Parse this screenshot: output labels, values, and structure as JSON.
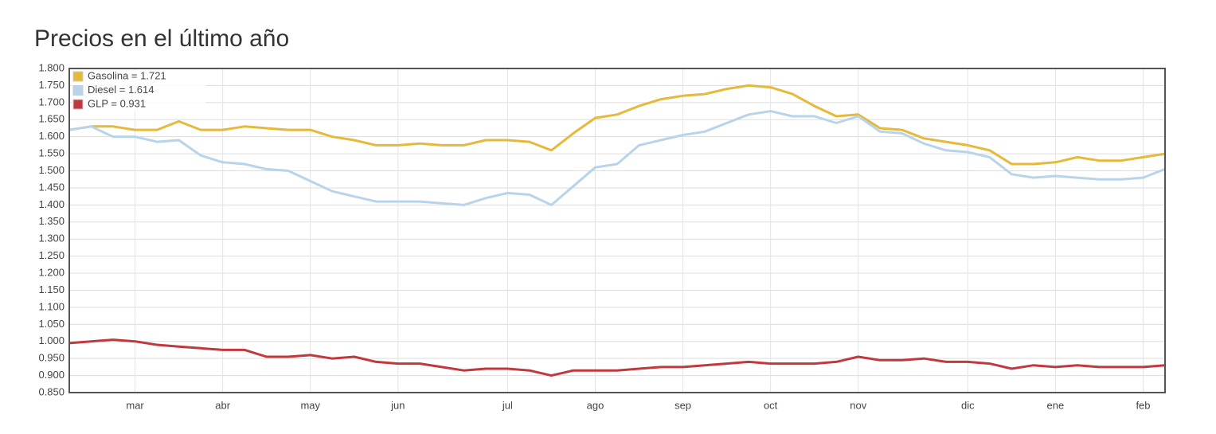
{
  "chart_data": {
    "type": "line",
    "title": "Precios en el último año",
    "categories": [
      null,
      null,
      null,
      "mar",
      null,
      null,
      null,
      "abr",
      null,
      null,
      null,
      "may",
      null,
      null,
      null,
      "jun",
      null,
      null,
      null,
      null,
      "jul",
      null,
      null,
      null,
      "ago",
      null,
      null,
      null,
      "sep",
      null,
      null,
      null,
      "oct",
      null,
      null,
      null,
      "nov",
      null,
      null,
      null,
      null,
      "dic",
      null,
      null,
      null,
      "ene",
      null,
      null,
      null,
      "feb",
      null
    ],
    "series": [
      {
        "name": "Gasolina = 1.721",
        "color": "#e6b93a",
        "values": [
          1.62,
          1.63,
          1.63,
          1.62,
          1.62,
          1.645,
          1.62,
          1.62,
          1.63,
          1.625,
          1.62,
          1.62,
          1.6,
          1.59,
          1.575,
          1.575,
          1.58,
          1.575,
          1.575,
          1.59,
          1.59,
          1.585,
          1.56,
          1.61,
          1.655,
          1.665,
          1.69,
          1.71,
          1.72,
          1.725,
          1.74,
          1.75,
          1.745,
          1.725,
          1.69,
          1.66,
          1.665,
          1.625,
          1.62,
          1.595,
          1.585,
          1.575,
          1.56,
          1.52,
          1.52,
          1.525,
          1.54,
          1.53,
          1.53,
          1.54,
          1.55
        ]
      },
      {
        "name": "Diesel = 1.614",
        "color": "#b8d4ea",
        "values": [
          1.62,
          1.63,
          1.6,
          1.6,
          1.585,
          1.59,
          1.545,
          1.525,
          1.52,
          1.505,
          1.5,
          1.47,
          1.44,
          1.425,
          1.41,
          1.41,
          1.41,
          1.405,
          1.4,
          1.42,
          1.435,
          1.43,
          1.4,
          1.455,
          1.51,
          1.52,
          1.575,
          1.59,
          1.605,
          1.615,
          1.64,
          1.665,
          1.675,
          1.66,
          1.66,
          1.64,
          1.66,
          1.615,
          1.61,
          1.58,
          1.56,
          1.555,
          1.54,
          1.49,
          1.48,
          1.485,
          1.48,
          1.475,
          1.475,
          1.48,
          1.505
        ]
      },
      {
        "name": "GLP = 0.931",
        "color": "#c0393f",
        "values": [
          0.995,
          1.0,
          1.005,
          1.0,
          0.99,
          0.985,
          0.98,
          0.975,
          0.975,
          0.955,
          0.955,
          0.96,
          0.95,
          0.955,
          0.94,
          0.935,
          0.935,
          0.925,
          0.915,
          0.92,
          0.92,
          0.915,
          0.9,
          0.915,
          0.915,
          0.915,
          0.92,
          0.925,
          0.925,
          0.93,
          0.935,
          0.94,
          0.935,
          0.935,
          0.935,
          0.94,
          0.955,
          0.945,
          0.945,
          0.95,
          0.94,
          0.94,
          0.935,
          0.92,
          0.93,
          0.925,
          0.93,
          0.925,
          0.925,
          0.925,
          0.93
        ]
      }
    ],
    "ylim": [
      0.85,
      1.8
    ],
    "yticks": [
      {
        "value": 0.85,
        "label": "0.850"
      },
      {
        "value": 0.9,
        "label": "0.900"
      },
      {
        "value": 0.95,
        "label": "0.950"
      },
      {
        "value": 1.0,
        "label": "1.000"
      },
      {
        "value": 1.05,
        "label": "1.050"
      },
      {
        "value": 1.1,
        "label": "1.100"
      },
      {
        "value": 1.15,
        "label": "1.150"
      },
      {
        "value": 1.2,
        "label": "1.200"
      },
      {
        "value": 1.25,
        "label": "1.250"
      },
      {
        "value": 1.3,
        "label": "1.300"
      },
      {
        "value": 1.35,
        "label": "1.350"
      },
      {
        "value": 1.4,
        "label": "1.400"
      },
      {
        "value": 1.45,
        "label": "1.450"
      },
      {
        "value": 1.5,
        "label": "1.500"
      },
      {
        "value": 1.55,
        "label": "1.550"
      },
      {
        "value": 1.6,
        "label": "1.600"
      },
      {
        "value": 1.65,
        "label": "1.650"
      },
      {
        "value": 1.7,
        "label": "1.700"
      },
      {
        "value": 1.75,
        "label": "1.750"
      },
      {
        "value": 1.8,
        "label": "1.800"
      }
    ],
    "grid": true,
    "legend": "top-left"
  }
}
